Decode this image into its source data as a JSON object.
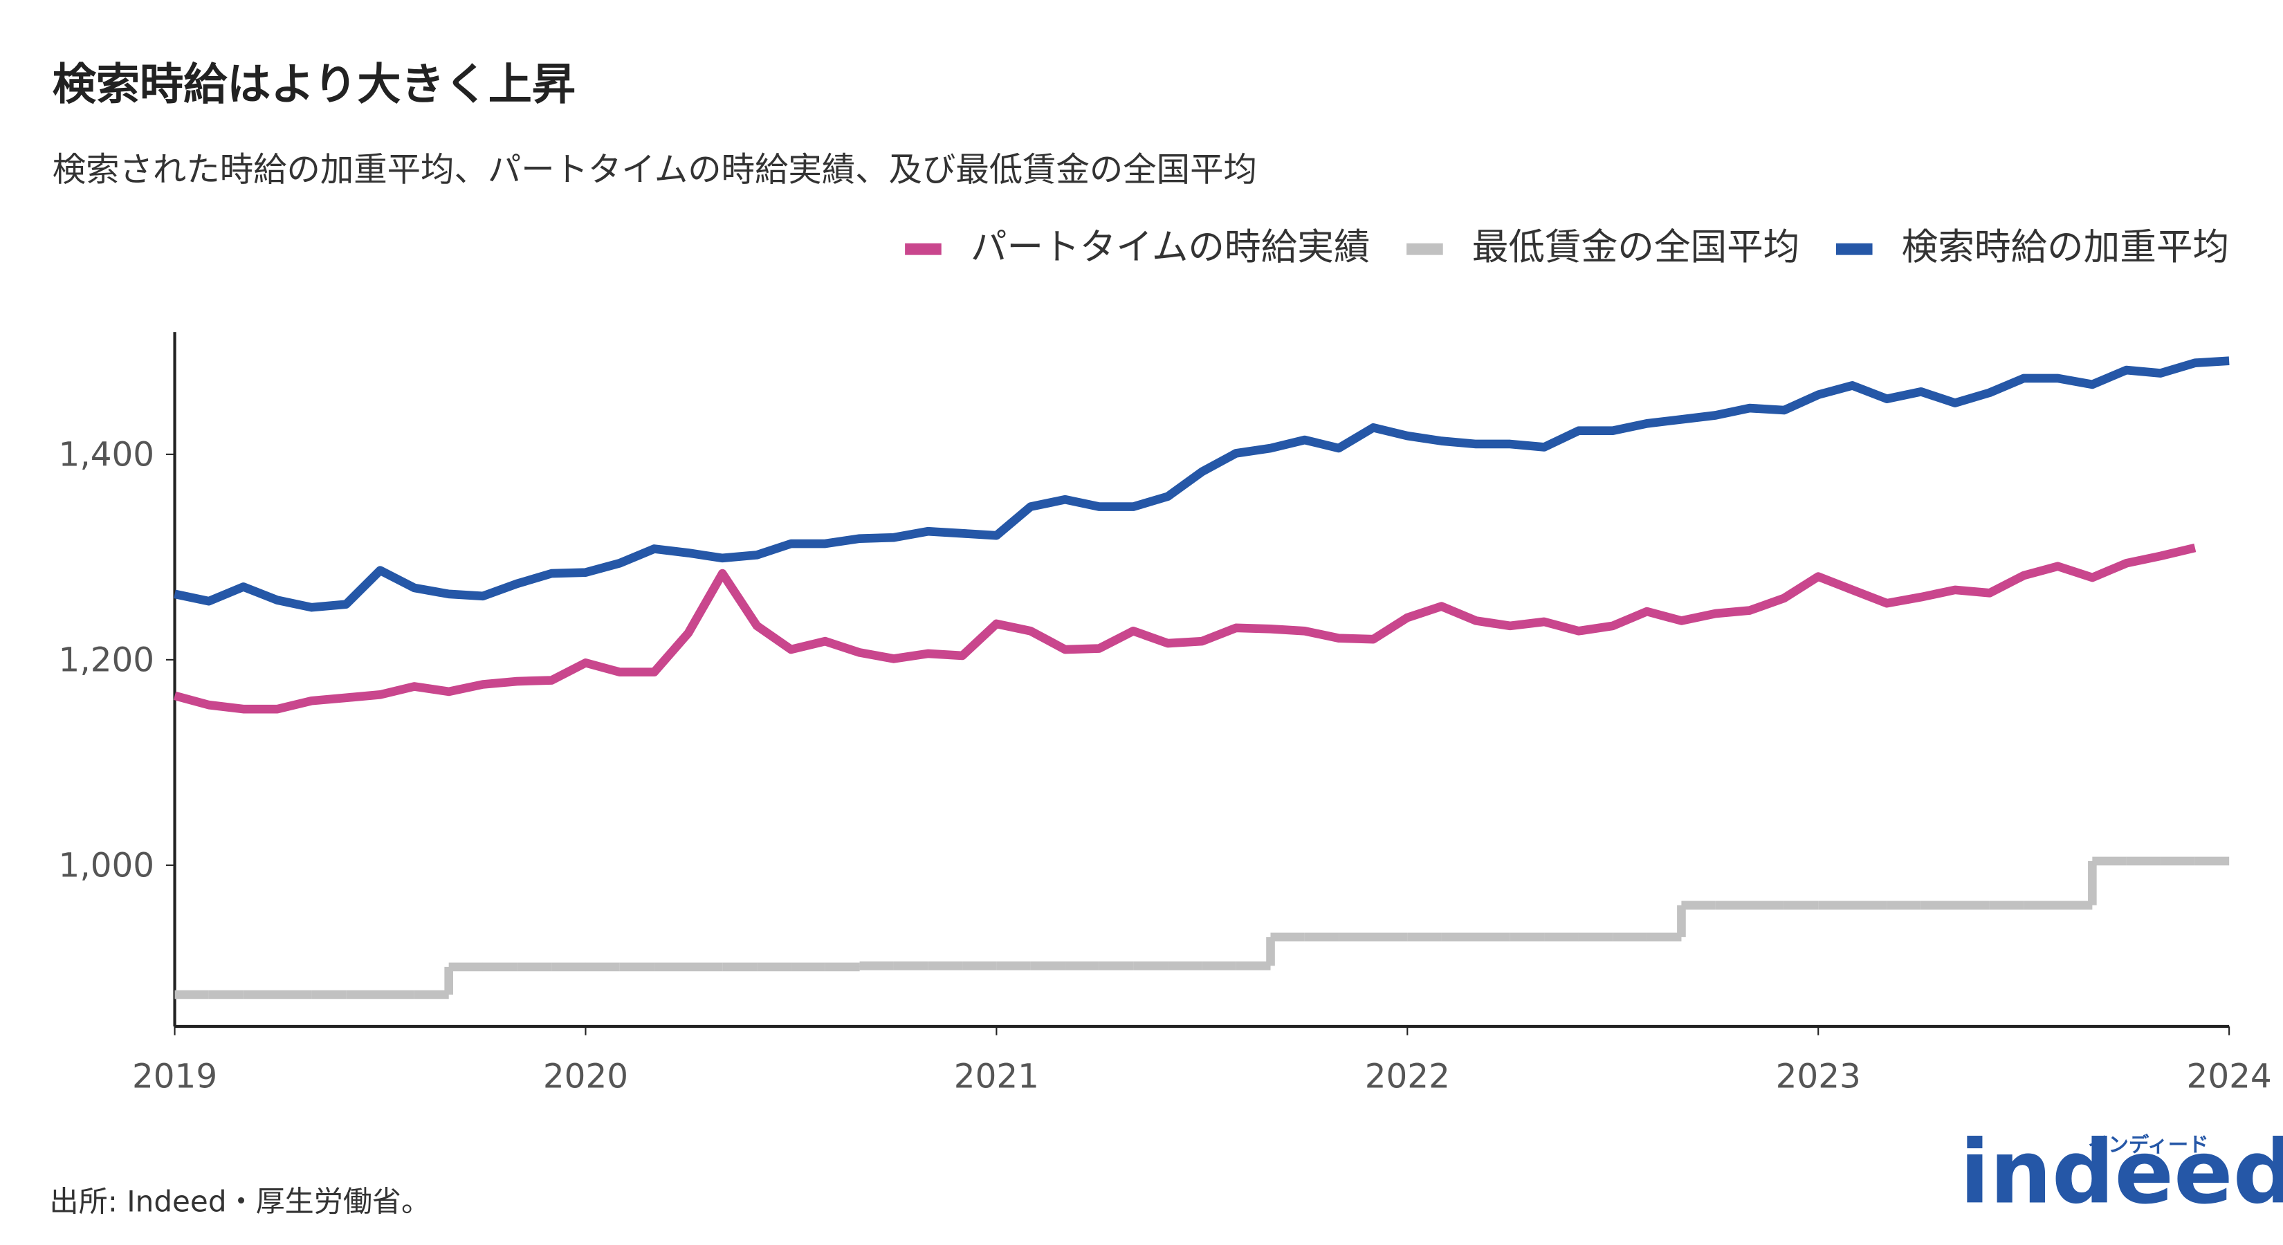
{
  "chart_data": {
    "type": "line",
    "title": "検索時給はより大きく上昇",
    "subtitle": "検索された時給の加重平均、パートタイムの時給実績、及び最低賃金の全国平均",
    "source": "出所: Indeed・厚生労働省。",
    "logo": {
      "text": "indeed",
      "subtext": "インディード",
      "color": "#2557a7"
    },
    "x": [
      2019,
      2019.083,
      2019.167,
      2019.25,
      2019.333,
      2019.417,
      2019.5,
      2019.583,
      2019.667,
      2019.75,
      2019.833,
      2019.917,
      2020,
      2020.083,
      2020.167,
      2020.25,
      2020.333,
      2020.417,
      2020.5,
      2020.583,
      2020.667,
      2020.75,
      2020.833,
      2020.917,
      2021,
      2021.083,
      2021.167,
      2021.25,
      2021.333,
      2021.417,
      2021.5,
      2021.583,
      2021.667,
      2021.75,
      2021.833,
      2021.917,
      2022,
      2022.083,
      2022.167,
      2022.25,
      2022.333,
      2022.417,
      2022.5,
      2022.583,
      2022.667,
      2022.75,
      2022.833,
      2022.917,
      2023,
      2023.083,
      2023.167,
      2023.25,
      2023.333,
      2023.417,
      2023.5,
      2023.583,
      2023.667,
      2023.75,
      2023.833,
      2023.917,
      2024
    ],
    "series": [
      {
        "name": "パートタイムの時給実績",
        "color": "#c9468d",
        "values": [
          1165,
          1156,
          1152,
          1152,
          1160,
          1163,
          1166,
          1174,
          1169,
          1176,
          1179,
          1180,
          1197,
          1188,
          1188,
          1226,
          1284,
          1233,
          1210,
          1218,
          1207,
          1201,
          1206,
          1204,
          1235,
          1228,
          1210,
          1211,
          1228,
          1216,
          1218,
          1231,
          1230,
          1228,
          1221,
          1220,
          1241,
          1252,
          1238,
          1233,
          1237,
          1228,
          1233,
          1247,
          1238,
          1245,
          1248,
          1260,
          1281,
          1268,
          1255,
          1261,
          1268,
          1265,
          1282,
          1291,
          1280,
          1294,
          1301,
          1309,
          null
        ]
      },
      {
        "name": "最低賃金の全国平均",
        "color": "#c1c1c1",
        "step": true,
        "values": [
          874,
          874,
          874,
          874,
          874,
          874,
          874,
          874,
          901,
          901,
          901,
          901,
          901,
          901,
          901,
          901,
          901,
          901,
          901,
          901,
          902,
          902,
          902,
          902,
          902,
          902,
          902,
          902,
          902,
          902,
          902,
          902,
          930,
          930,
          930,
          930,
          930,
          930,
          930,
          930,
          930,
          930,
          930,
          930,
          961,
          961,
          961,
          961,
          961,
          961,
          961,
          961,
          961,
          961,
          961,
          961,
          1004,
          1004,
          1004,
          1004,
          1004
        ]
      },
      {
        "name": "検索時給の加重平均",
        "color": "#2557a7",
        "values": [
          1264,
          1257,
          1271,
          1258,
          1251,
          1254,
          1287,
          1270,
          1264,
          1262,
          1274,
          1284,
          1285,
          1294,
          1308,
          1304,
          1299,
          1302,
          1313,
          1313,
          1318,
          1319,
          1325,
          1323,
          1321,
          1349,
          1356,
          1349,
          1349,
          1359,
          1383,
          1401,
          1406,
          1414,
          1406,
          1426,
          1418,
          1413,
          1410,
          1410,
          1407,
          1423,
          1423,
          1430,
          1434,
          1438,
          1445,
          1443,
          1458,
          1467,
          1454,
          1461,
          1450,
          1460,
          1474,
          1474,
          1468,
          1482,
          1479,
          1489,
          1491
        ]
      }
    ],
    "xlim": [
      2019,
      2024
    ],
    "xticks": [
      2019,
      2020,
      2021,
      2022,
      2023,
      2024
    ],
    "ylim": [
      843,
      1519
    ],
    "yticks": [
      {
        "value": 1000,
        "label": "1,000"
      },
      {
        "value": 1200,
        "label": "1,200"
      },
      {
        "value": 1400,
        "label": "1,400"
      }
    ],
    "grid": false
  }
}
